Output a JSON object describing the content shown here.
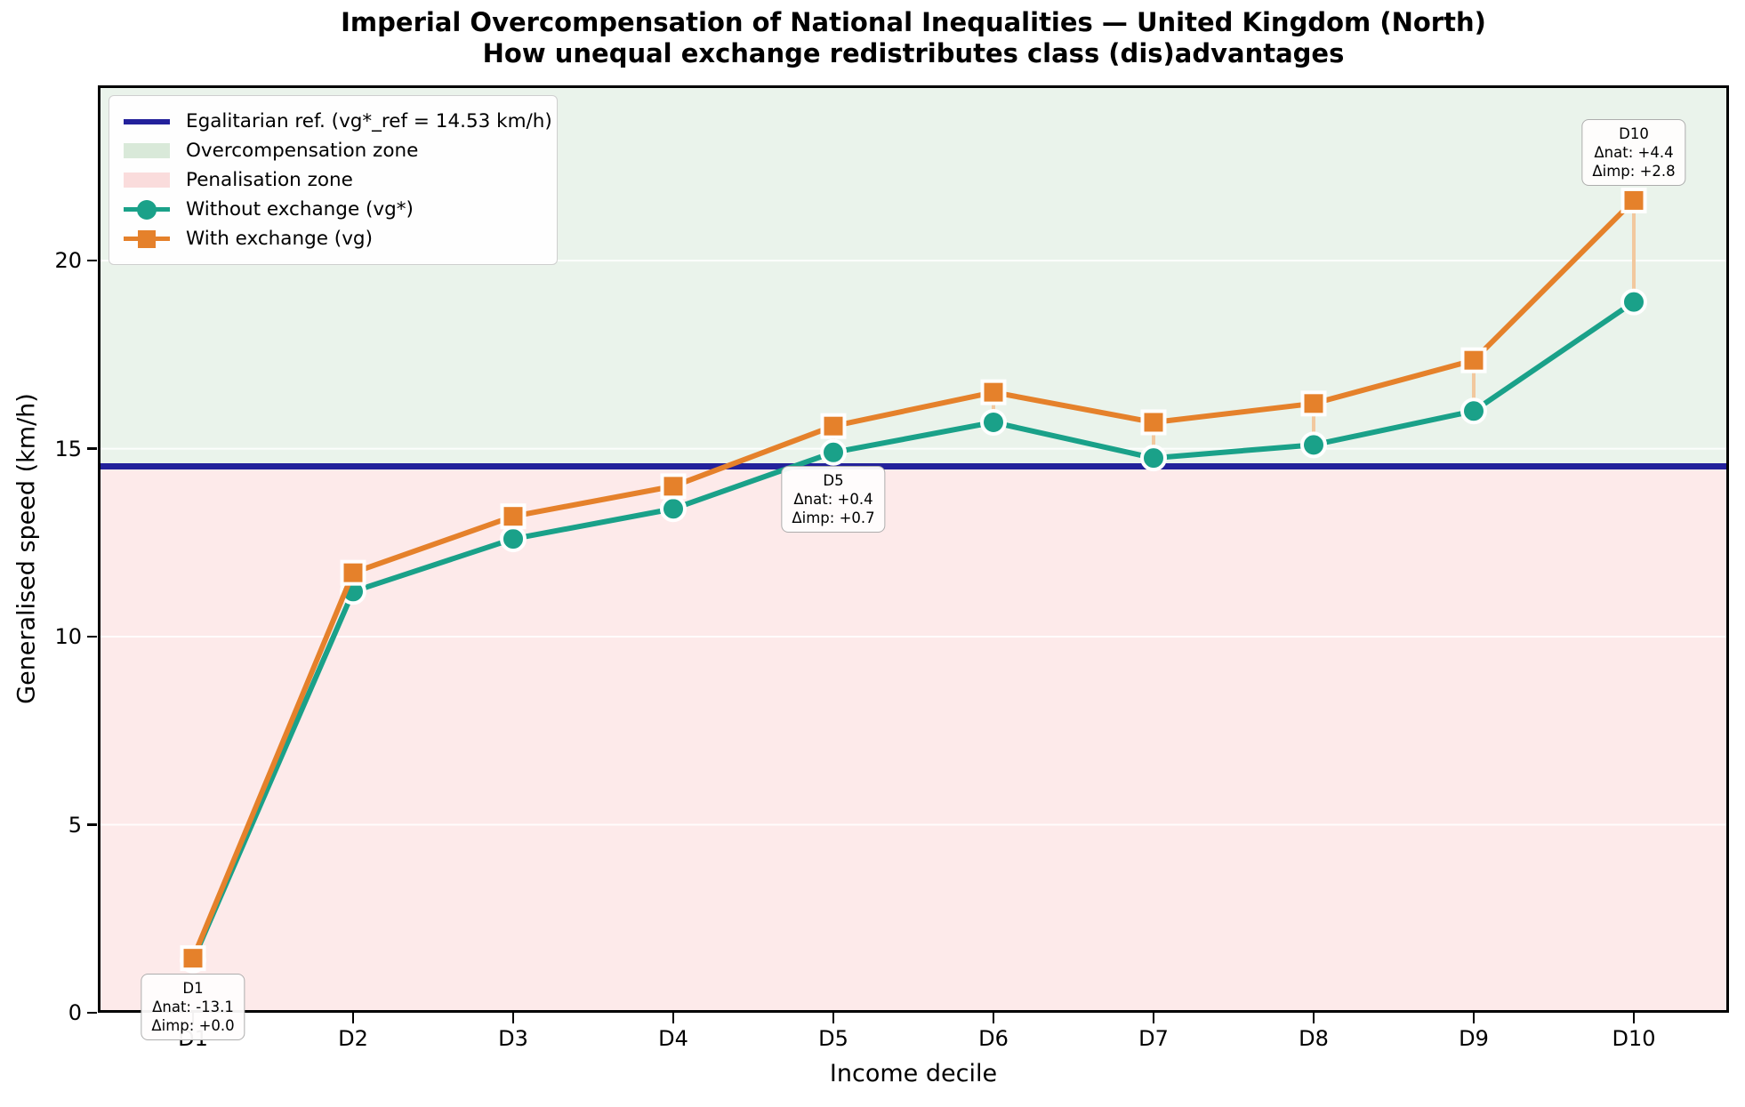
{
  "title": {
    "line1": "Imperial Overcompensation of National Inequalities — United Kingdom (North)",
    "line2": "How unequal exchange redistributes class (dis)advantages"
  },
  "axes": {
    "xlabel": "Income decile",
    "ylabel": "Generalised speed (km/h)",
    "x_ticks": [
      "D1",
      "D2",
      "D3",
      "D4",
      "D5",
      "D6",
      "D7",
      "D8",
      "D9",
      "D10"
    ],
    "y_ticks": [
      0,
      5,
      10,
      15,
      20
    ]
  },
  "colors": {
    "teal": "#1aa189",
    "orange": "#e5812b",
    "navy": "#23219b",
    "zone_green": "#eaf3eb",
    "zone_pink": "#fdeaea",
    "legend_green": "#d9e9d9",
    "legend_pink": "#fadcdc",
    "connector": "#f2c89e",
    "grid": "rgba(255,255,255,0.85)"
  },
  "legend": {
    "items": [
      {
        "type": "line",
        "color": "#23219b",
        "label": "Egalitarian ref. (vg*_ref = 14.53 km/h)"
      },
      {
        "type": "patch",
        "color": "#d9e9d9",
        "label": "Overcompensation zone"
      },
      {
        "type": "patch",
        "color": "#fadcdc",
        "label": "Penalisation zone"
      },
      {
        "type": "line-circle",
        "color": "#1aa189",
        "label": "Without exchange (vg*)"
      },
      {
        "type": "line-square",
        "color": "#e5812b",
        "label": "With exchange (vg)"
      }
    ]
  },
  "chart_data": {
    "type": "line",
    "title": "Imperial Overcompensation of National Inequalities — United Kingdom (North)",
    "subtitle": "How unequal exchange redistributes class (dis)advantages",
    "xlabel": "Income decile",
    "ylabel": "Generalised speed (km/h)",
    "categories": [
      "D1",
      "D2",
      "D3",
      "D4",
      "D5",
      "D6",
      "D7",
      "D8",
      "D9",
      "D10"
    ],
    "series": [
      {
        "name": "Without exchange (vg*)",
        "marker": "circle",
        "color": "#1aa189",
        "values": [
          1.4,
          11.2,
          12.6,
          13.4,
          14.9,
          15.7,
          14.75,
          15.1,
          16.0,
          18.9
        ]
      },
      {
        "name": "With exchange (vg)",
        "marker": "square",
        "color": "#e5812b",
        "values": [
          1.45,
          11.7,
          13.2,
          14.0,
          15.6,
          16.5,
          15.7,
          16.2,
          17.35,
          21.6
        ]
      }
    ],
    "reference": {
      "label": "Egalitarian ref. (vg*_ref = 14.53 km/h)",
      "value": 14.53,
      "color": "#23219b"
    },
    "zones": {
      "overcompensation": {
        "label": "Overcompensation zone",
        "color": "#eaf3eb",
        "range": "above reference"
      },
      "penalisation": {
        "label": "Penalisation zone",
        "color": "#fdeaea",
        "range": "below reference"
      }
    },
    "ylim": [
      0,
      24.66
    ],
    "grid": "horizontal at y ticks",
    "legend_position": "upper left",
    "annotations": [
      {
        "decile": 1,
        "place": "below",
        "lines": [
          "D1",
          "Δnat: -13.1",
          "Δimp: +0.0"
        ]
      },
      {
        "decile": 5,
        "place": "below",
        "lines": [
          "D5",
          "Δnat: +0.4",
          "Δimp: +0.7"
        ]
      },
      {
        "decile": 10,
        "place": "above",
        "lines": [
          "D10",
          "Δnat: +4.4",
          "Δimp: +2.8"
        ]
      }
    ]
  }
}
